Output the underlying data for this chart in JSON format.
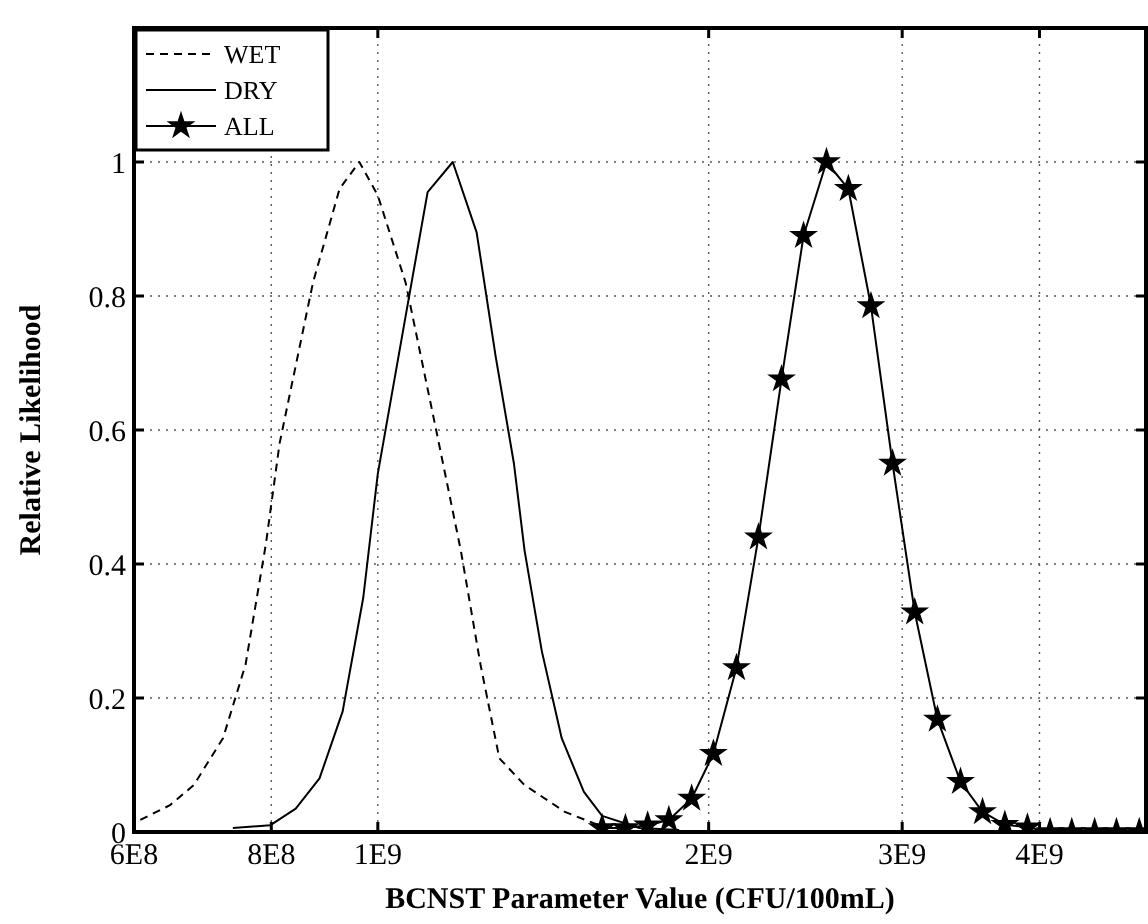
{
  "chart_data": {
    "type": "line",
    "xlabel": "BCNST Parameter Value (CFU/100mL)",
    "ylabel": "Relative Likelihood",
    "log": "x",
    "grid": true,
    "legend": "top left",
    "xlim": [
      600000000,
      5000000000
    ],
    "xticks": [
      {
        "value": 600000000,
        "label": "6E8"
      },
      {
        "value": 800000000,
        "label": "8E8"
      },
      {
        "value": 1000000000,
        "label": "1E9"
      },
      {
        "value": 2000000000,
        "label": "2E9"
      },
      {
        "value": 3000000000,
        "label": "3E9"
      },
      {
        "value": 4000000000,
        "label": "4E9"
      }
    ],
    "ylim": [
      0,
      1.2
    ],
    "yticks": [
      0,
      0.2,
      0.4,
      0.6,
      0.8,
      1
    ],
    "series": [
      {
        "name": "WET",
        "color": "#000000",
        "line_style": "dashed",
        "marker": "none",
        "x": [
          608000000,
          647000000,
          680000000,
          723000000,
          758000000,
          791000000,
          814000000,
          873000000,
          923000000,
          962000000,
          1000000000,
          1060000000,
          1130000000,
          1190000000,
          1240000000,
          1290000000,
          1360000000,
          1480000000,
          1590000000,
          1690000000
        ],
        "values": [
          0.018,
          0.04,
          0.07,
          0.14,
          0.25,
          0.43,
          0.58,
          0.82,
          0.96,
          1.0,
          0.95,
          0.82,
          0.6,
          0.42,
          0.25,
          0.11,
          0.07,
          0.03,
          0.01,
          0.0
        ]
      },
      {
        "name": "DRY",
        "color": "#000000",
        "line_style": "solid",
        "marker": "none",
        "x": [
          738000000,
          798000000,
          842000000,
          885000000,
          929000000,
          970000000,
          1000000000,
          1060000000,
          1110000000,
          1170000000,
          1230000000,
          1280000000,
          1330000000,
          1360000000,
          1410000000,
          1470000000,
          1540000000,
          1600000000,
          1730000000,
          1880000000
        ],
        "values": [
          0.006,
          0.01,
          0.035,
          0.08,
          0.18,
          0.35,
          0.535,
          0.77,
          0.955,
          1.0,
          0.895,
          0.71,
          0.55,
          0.42,
          0.27,
          0.14,
          0.06,
          0.024,
          0.006,
          0.003
        ]
      },
      {
        "name": "ALL",
        "color": "#000000",
        "line_style": "solid",
        "marker": "star",
        "x": [
          1600000000,
          1680000000,
          1760000000,
          1840000000,
          1930000000,
          2020000000,
          2120000000,
          2220000000,
          2330000000,
          2440000000,
          2560000000,
          2680000000,
          2810000000,
          2940000000,
          3080000000,
          3230000000,
          3390000000,
          3550000000,
          3720000000,
          3900000000,
          4090000000,
          4280000000,
          4490000000,
          4700000000,
          4930000000
        ],
        "values": [
          0.006,
          0.006,
          0.01,
          0.018,
          0.05,
          0.117,
          0.245,
          0.44,
          0.676,
          0.89,
          1.0,
          0.96,
          0.785,
          0.55,
          0.328,
          0.168,
          0.075,
          0.03,
          0.011,
          0.007,
          0.0,
          0.0,
          0.0,
          0.0,
          0.0
        ]
      }
    ]
  }
}
